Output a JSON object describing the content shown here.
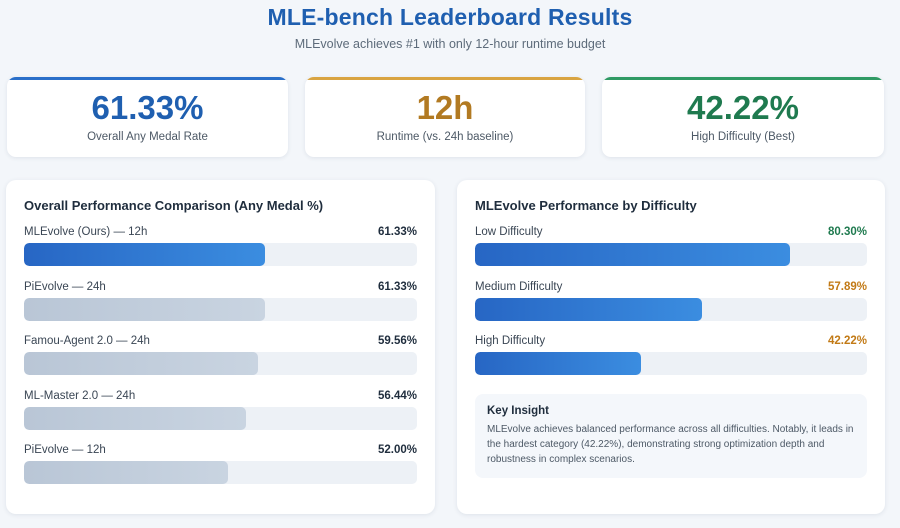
{
  "header": {
    "title": "MLE-bench Leaderboard Results",
    "subtitle": "MLEvolve achieves #1 with only 12-hour runtime budget"
  },
  "stats": [
    {
      "value": "61.33%",
      "label": "Overall Any Medal Rate",
      "color": "#1f5fb0",
      "accent": "#2a6fc9"
    },
    {
      "value": "12h",
      "label": "Runtime (vs. 24h baseline)",
      "color": "#b27a22",
      "accent": "#d9a441"
    },
    {
      "value": "42.22%",
      "label": "High Difficulty (Best)",
      "color": "#1f7a4f",
      "accent": "#2f9a64"
    }
  ],
  "chart_data": [
    {
      "type": "bar",
      "title": "Overall Performance Comparison (Any Medal %)",
      "categories": [
        "MLEvolve (Ours) — 12h",
        "PiEvolve — 24h",
        "Famou-Agent 2.0 — 24h",
        "ML-Master 2.0 — 24h",
        "PiEvolve — 12h"
      ],
      "values": [
        61.33,
        61.33,
        59.56,
        56.44,
        52.0
      ],
      "value_labels": [
        "61.33%",
        "61.33%",
        "59.56%",
        "56.44%",
        "52.00%"
      ],
      "highlight": [
        true,
        false,
        false,
        false,
        false
      ],
      "ylim": [
        0,
        100
      ],
      "label_color": "#1f2d3d"
    },
    {
      "type": "bar",
      "title": "MLEvolve Performance by Difficulty",
      "categories": [
        "Low Difficulty",
        "Medium Difficulty",
        "High Difficulty"
      ],
      "values": [
        80.3,
        57.89,
        42.22
      ],
      "value_labels": [
        "80.30%",
        "57.89%",
        "42.22%"
      ],
      "label_colors": [
        "#1f7a4f",
        "#c27a16",
        "#c27a16"
      ],
      "ylim": [
        0,
        100
      ]
    }
  ],
  "insight": {
    "heading": "Key Insight",
    "body": "MLEvolve achieves balanced performance across all difficulties. Notably, it leads in the hardest category (42.22%), demonstrating strong optimization depth and robustness in complex scenarios."
  }
}
